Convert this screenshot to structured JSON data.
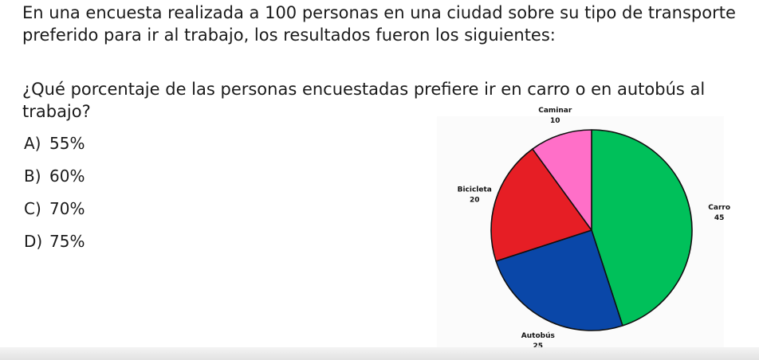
{
  "problem": {
    "intro": "En una encuesta realizada a 100 personas en una ciudad sobre su tipo de transporte preferido para ir al trabajo, los resultados fueron los siguientes:",
    "question": "¿Qué porcentaje de las personas encuestadas prefiere ir en carro o en autobús al trabajo?",
    "options": [
      {
        "letter": "A)",
        "text": "55%"
      },
      {
        "letter": "B)",
        "text": "60%"
      },
      {
        "letter": "C)",
        "text": "70%"
      },
      {
        "letter": "D)",
        "text": "75%"
      }
    ]
  },
  "chart_data": {
    "type": "pie",
    "title": "",
    "slices": [
      {
        "label": "Carro",
        "value": 45,
        "color": "#00c05a"
      },
      {
        "label": "Autobús",
        "value": 25,
        "color": "#0a47a8"
      },
      {
        "label": "Bicicleta",
        "value": 20,
        "color": "#e61e25"
      },
      {
        "label": "Caminar",
        "value": 10,
        "color": "#ff6fc8"
      }
    ],
    "start": "top",
    "direction": "clockwise",
    "legend": "none"
  }
}
